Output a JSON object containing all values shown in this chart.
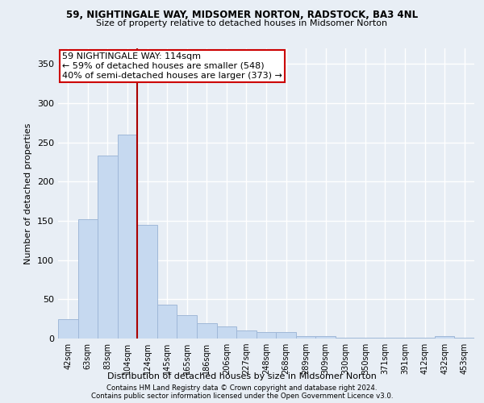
{
  "title1": "59, NIGHTINGALE WAY, MIDSOMER NORTON, RADSTOCK, BA3 4NL",
  "title2": "Size of property relative to detached houses in Midsomer Norton",
  "xlabel": "Distribution of detached houses by size in Midsomer Norton",
  "ylabel": "Number of detached properties",
  "categories": [
    "42sqm",
    "63sqm",
    "83sqm",
    "104sqm",
    "124sqm",
    "145sqm",
    "165sqm",
    "186sqm",
    "206sqm",
    "227sqm",
    "248sqm",
    "268sqm",
    "289sqm",
    "309sqm",
    "330sqm",
    "350sqm",
    "371sqm",
    "391sqm",
    "412sqm",
    "432sqm",
    "453sqm"
  ],
  "values": [
    25,
    152,
    233,
    260,
    145,
    43,
    30,
    20,
    15,
    10,
    8,
    8,
    3,
    3,
    1,
    1,
    1,
    1,
    1,
    3,
    1
  ],
  "bar_color": "#c6d9f0",
  "bar_edgecolor": "#a0b8d8",
  "bar_width": 1.0,
  "vline_color": "#aa0000",
  "annotation_line1": "59 NIGHTINGALE WAY: 114sqm",
  "annotation_line2": "← 59% of detached houses are smaller (548)",
  "annotation_line3": "40% of semi-detached houses are larger (373) →",
  "annotation_box_color": "#ffffff",
  "annotation_box_edgecolor": "#cc0000",
  "ylim": [
    0,
    370
  ],
  "yticks": [
    0,
    50,
    100,
    150,
    200,
    250,
    300,
    350
  ],
  "background_color": "#e8eef5",
  "grid_color": "#ffffff",
  "footer1": "Contains HM Land Registry data © Crown copyright and database right 2024.",
  "footer2": "Contains public sector information licensed under the Open Government Licence v3.0."
}
